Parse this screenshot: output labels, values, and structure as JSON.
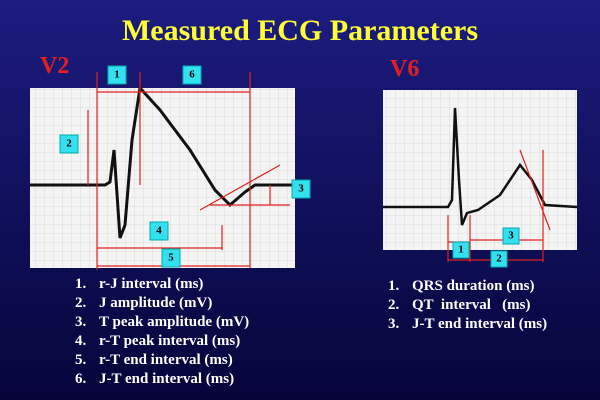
{
  "title": "Measured ECG Parameters",
  "panels": [
    {
      "lead": "V2",
      "markers": [
        "1",
        "6",
        "2",
        "3",
        "4",
        "5"
      ],
      "items": [
        {
          "n": "1.",
          "text": "r-J interval (ms)"
        },
        {
          "n": "2.",
          "text": "J amplitude (mV)"
        },
        {
          "n": "3.",
          "text": "T peak amplitude (mV)"
        },
        {
          "n": "4.",
          "text": "r-T peak interval (ms)"
        },
        {
          "n": "5.",
          "text": "r-T end interval (ms)"
        },
        {
          "n": "6.",
          "text": "J-T end interval (ms)"
        }
      ]
    },
    {
      "lead": "V6",
      "markers": [
        "1",
        "3",
        "2"
      ],
      "items": [
        {
          "n": "1.",
          "text": "QRS duration (ms)"
        },
        {
          "n": "2.",
          "text": "QT  interval   (ms)"
        },
        {
          "n": "3.",
          "text": "J-T end interval (ms)"
        }
      ]
    }
  ]
}
